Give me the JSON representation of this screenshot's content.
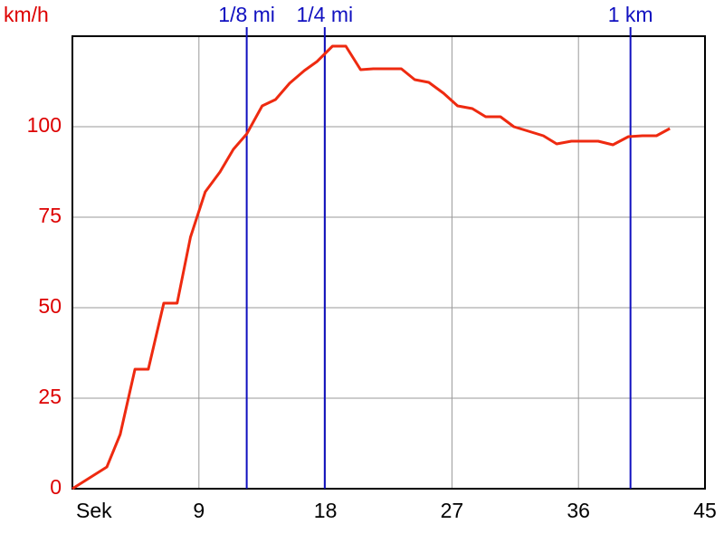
{
  "chart_data": {
    "type": "line",
    "y_label": "km/h",
    "x": [
      0,
      2.45,
      3.4,
      4.45,
      5.4,
      6.5,
      7.45,
      8.4,
      9.45,
      10.5,
      11.45,
      12.4,
      13.5,
      14.45,
      15.45,
      16.5,
      17.4,
      18.5,
      19.45,
      20.5,
      21.4,
      23.4,
      24.35,
      25.35,
      26.4,
      27.4,
      28.45,
      29.4,
      30.45,
      31.4,
      33.5,
      34.45,
      35.5,
      37.4,
      38.45,
      39.55,
      40.55,
      41.55,
      42.5
    ],
    "series": [
      {
        "name": "km/h",
        "color": "#ee2a10",
        "values": [
          0,
          6,
          15,
          33,
          33,
          51.25,
          51.25,
          69.5,
          82,
          87.5,
          93.75,
          98,
          105.75,
          107.5,
          112,
          115.5,
          118,
          122.25,
          122.25,
          115.75,
          116,
          116,
          113,
          112.25,
          109.25,
          105.75,
          105,
          102.75,
          102.75,
          100,
          97.5,
          95.25,
          96,
          96,
          95,
          97.25,
          97.5,
          97.5,
          99.5
        ]
      }
    ],
    "xlim": [
      0,
      45
    ],
    "xticks": [
      {
        "value": 0,
        "label": "Sek"
      },
      9,
      18,
      27,
      36,
      45
    ],
    "ylim": [
      0,
      125
    ],
    "yticks": [
      0,
      25,
      50,
      75,
      100
    ],
    "grid": true,
    "markers": [
      {
        "label": "1/8 mi",
        "x": 12.4,
        "color": "#1010c0"
      },
      {
        "label": "1/4 mi",
        "x": 17.95,
        "color": "#1010c0"
      },
      {
        "label": "1 km",
        "x": 39.7,
        "color": "#1010c0"
      }
    ]
  }
}
